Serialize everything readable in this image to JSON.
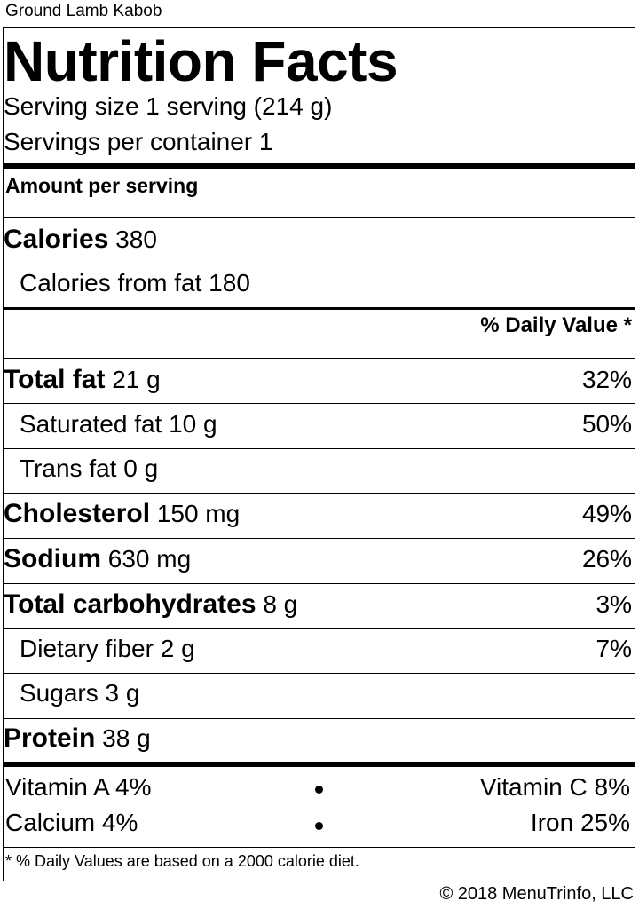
{
  "item_name": "Ground Lamb Kabob",
  "title": "Nutrition Facts",
  "serving_size": "Serving size 1 serving (214 g)",
  "servings_per_container": "Servings per container 1",
  "amount_per_serving": "Amount per serving",
  "calories": {
    "label": "Calories",
    "value": "380"
  },
  "calories_from_fat": "Calories from fat 180",
  "daily_value_header": "% Daily Value *",
  "nutrients": [
    {
      "label": "Total fat",
      "amount": "21 g",
      "dv": "32%"
    },
    {
      "label": "Saturated fat 10 g",
      "amount": "",
      "dv": "50%"
    },
    {
      "label": "Trans fat 0 g",
      "amount": "",
      "dv": ""
    },
    {
      "label": "Cholesterol",
      "amount": "150 mg",
      "dv": "49%"
    },
    {
      "label": "Sodium",
      "amount": "630 mg",
      "dv": "26%"
    },
    {
      "label": "Total carbohydrates",
      "amount": "8 g",
      "dv": "3%"
    },
    {
      "label": "Dietary fiber 2 g",
      "amount": "",
      "dv": "7%"
    },
    {
      "label": "Sugars 3 g",
      "amount": "",
      "dv": ""
    },
    {
      "label": "Protein",
      "amount": "38 g",
      "dv": ""
    }
  ],
  "vitamins": {
    "vitamin_a": "Vitamin A 4%",
    "vitamin_c": "Vitamin C 8%",
    "calcium": "Calcium 4%",
    "iron": "Iron 25%"
  },
  "footnote": "* % Daily Values are based on a 2000 calorie diet.",
  "copyright": "© 2018 MenuTrinfo, LLC"
}
